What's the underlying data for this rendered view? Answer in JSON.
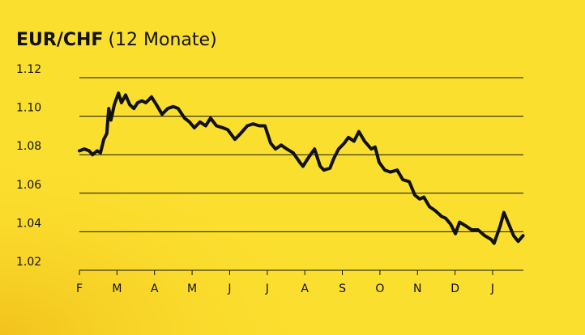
{
  "chart_data": {
    "type": "line",
    "title": "EUR/CHF",
    "subtitle": "(12 Monate)",
    "xlim": [
      0,
      11.82
    ],
    "xticks": [
      {
        "value": 0,
        "label": "F"
      },
      {
        "value": 1,
        "label": "M"
      },
      {
        "value": 2,
        "label": "A"
      },
      {
        "value": 3,
        "label": "M"
      },
      {
        "value": 4,
        "label": "J"
      },
      {
        "value": 5,
        "label": "J"
      },
      {
        "value": 6,
        "label": "A"
      },
      {
        "value": 7,
        "label": "S"
      },
      {
        "value": 8,
        "label": "O"
      },
      {
        "value": 9,
        "label": "N"
      },
      {
        "value": 10,
        "label": "D"
      },
      {
        "value": 11,
        "label": "J"
      }
    ],
    "ylim": [
      1.02,
      1.12
    ],
    "yticks": [
      1.02,
      1.04,
      1.06,
      1.08,
      {
        "value": 1.1,
        "label": "1.10"
      },
      1.12
    ],
    "grid": true,
    "series": [
      {
        "name": "EUR/CHF",
        "color": "#111111",
        "x": [
          0.0,
          0.13,
          0.26,
          0.35,
          0.47,
          0.56,
          0.65,
          0.73,
          0.78,
          0.84,
          0.93,
          1.04,
          1.12,
          1.23,
          1.34,
          1.45,
          1.55,
          1.66,
          1.77,
          1.92,
          2.05,
          2.2,
          2.35,
          2.5,
          2.63,
          2.8,
          2.93,
          3.06,
          3.21,
          3.36,
          3.49,
          3.65,
          3.82,
          3.95,
          4.14,
          4.29,
          4.47,
          4.62,
          4.79,
          4.94,
          5.09,
          5.22,
          5.37,
          5.52,
          5.69,
          5.87,
          5.95,
          6.08,
          6.26,
          6.41,
          6.51,
          6.67,
          6.77,
          6.9,
          7.05,
          7.16,
          7.31,
          7.44,
          7.59,
          7.77,
          7.87,
          7.98,
          8.13,
          8.28,
          8.46,
          8.61,
          8.78,
          8.93,
          9.06,
          9.17,
          9.32,
          9.47,
          9.64,
          9.75,
          9.88,
          10.01,
          10.12,
          10.29,
          10.44,
          10.61,
          10.79,
          10.96,
          11.04,
          11.2,
          11.3,
          11.43,
          11.56,
          11.68,
          11.81
        ],
        "values": [
          1.082,
          1.083,
          1.082,
          1.08,
          1.082,
          1.081,
          1.088,
          1.091,
          1.104,
          1.098,
          1.106,
          1.112,
          1.107,
          1.111,
          1.106,
          1.104,
          1.107,
          1.108,
          1.107,
          1.11,
          1.106,
          1.101,
          1.104,
          1.105,
          1.104,
          1.099,
          1.097,
          1.094,
          1.097,
          1.095,
          1.099,
          1.095,
          1.094,
          1.093,
          1.088,
          1.091,
          1.095,
          1.096,
          1.095,
          1.095,
          1.086,
          1.083,
          1.085,
          1.083,
          1.081,
          1.076,
          1.074,
          1.078,
          1.083,
          1.074,
          1.072,
          1.073,
          1.078,
          1.083,
          1.086,
          1.089,
          1.087,
          1.092,
          1.087,
          1.083,
          1.084,
          1.076,
          1.072,
          1.071,
          1.072,
          1.067,
          1.066,
          1.059,
          1.057,
          1.058,
          1.053,
          1.051,
          1.048,
          1.047,
          1.044,
          1.039,
          1.045,
          1.043,
          1.041,
          1.041,
          1.038,
          1.036,
          1.034,
          1.043,
          1.05,
          1.044,
          1.038,
          1.035,
          1.038
        ]
      }
    ]
  }
}
